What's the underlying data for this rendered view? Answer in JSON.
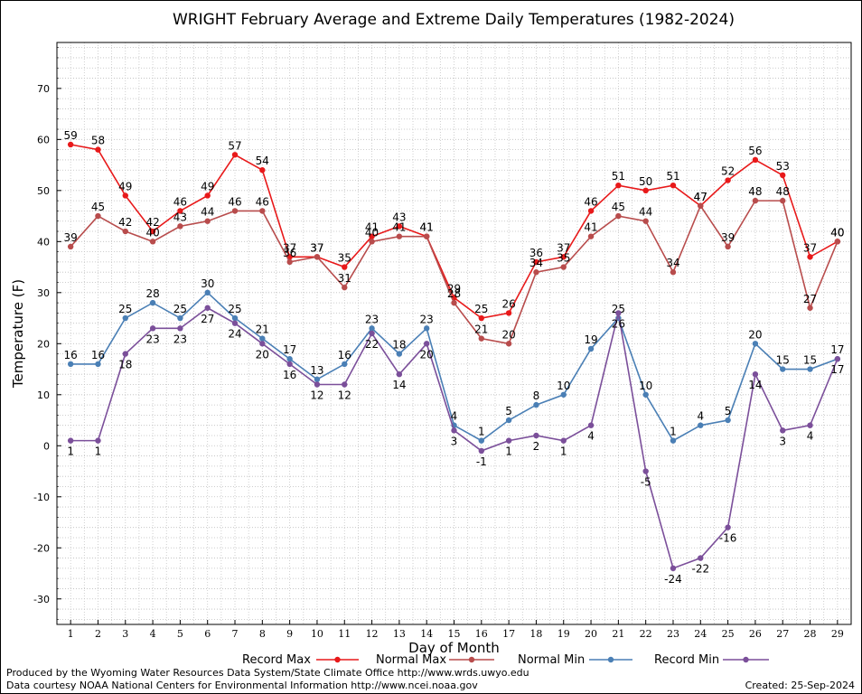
{
  "chart_data": {
    "type": "line",
    "title": "WRIGHT February Average and Extreme Daily Temperatures (1982-2024)",
    "xlabel": "Day of Month",
    "ylabel": "Temperature (F)",
    "x": [
      1,
      2,
      3,
      4,
      5,
      6,
      7,
      8,
      9,
      10,
      11,
      12,
      13,
      14,
      15,
      16,
      17,
      18,
      19,
      20,
      21,
      22,
      23,
      24,
      25,
      26,
      27,
      28,
      29
    ],
    "xlim": [
      0.5,
      29.5
    ],
    "ylim": [
      -35,
      79
    ],
    "y_ticks": [
      -30,
      -20,
      -10,
      0,
      10,
      20,
      30,
      40,
      50,
      60,
      70
    ],
    "grid": true,
    "legend_position": "bottom",
    "series": [
      {
        "name": "Record Max",
        "color": "#e8191a",
        "label_pos": "above",
        "values": [
          59,
          58,
          49,
          42,
          46,
          49,
          57,
          54,
          37,
          37,
          35,
          41,
          43,
          41,
          29,
          25,
          26,
          36,
          37,
          46,
          51,
          50,
          51,
          47,
          52,
          56,
          53,
          37,
          40
        ]
      },
      {
        "name": "Normal Max",
        "color": "#b84c4c",
        "label_pos": "above",
        "values": [
          39,
          45,
          42,
          40,
          43,
          44,
          46,
          46,
          36,
          37,
          31,
          40,
          41,
          41,
          28,
          21,
          20,
          34,
          35,
          41,
          45,
          44,
          34,
          47,
          39,
          48,
          48,
          27,
          40
        ]
      },
      {
        "name": "Normal Min",
        "color": "#4a7fb5",
        "label_pos": "above",
        "values": [
          16,
          16,
          25,
          28,
          25,
          30,
          25,
          21,
          17,
          13,
          16,
          23,
          18,
          23,
          4,
          1,
          5,
          8,
          10,
          19,
          25,
          10,
          1,
          4,
          5,
          20,
          15,
          15,
          17
        ]
      },
      {
        "name": "Record Min",
        "color": "#7b4f9a",
        "label_pos": "below",
        "values": [
          1,
          1,
          18,
          23,
          23,
          27,
          24,
          20,
          16,
          12,
          12,
          22,
          14,
          20,
          3,
          -1,
          1,
          2,
          1,
          4,
          26,
          -5,
          -24,
          -22,
          -16,
          14,
          3,
          4,
          17
        ]
      }
    ]
  },
  "footer": {
    "produced_by": "Produced by the Wyoming Water Resources Data System/State Climate Office http://www.wrds.uwyo.edu",
    "data_courtesy": "Data courtesy NOAA National Centers for Environmental Information http://www.ncei.noaa.gov",
    "created": "Created:  25-Sep-2024"
  }
}
